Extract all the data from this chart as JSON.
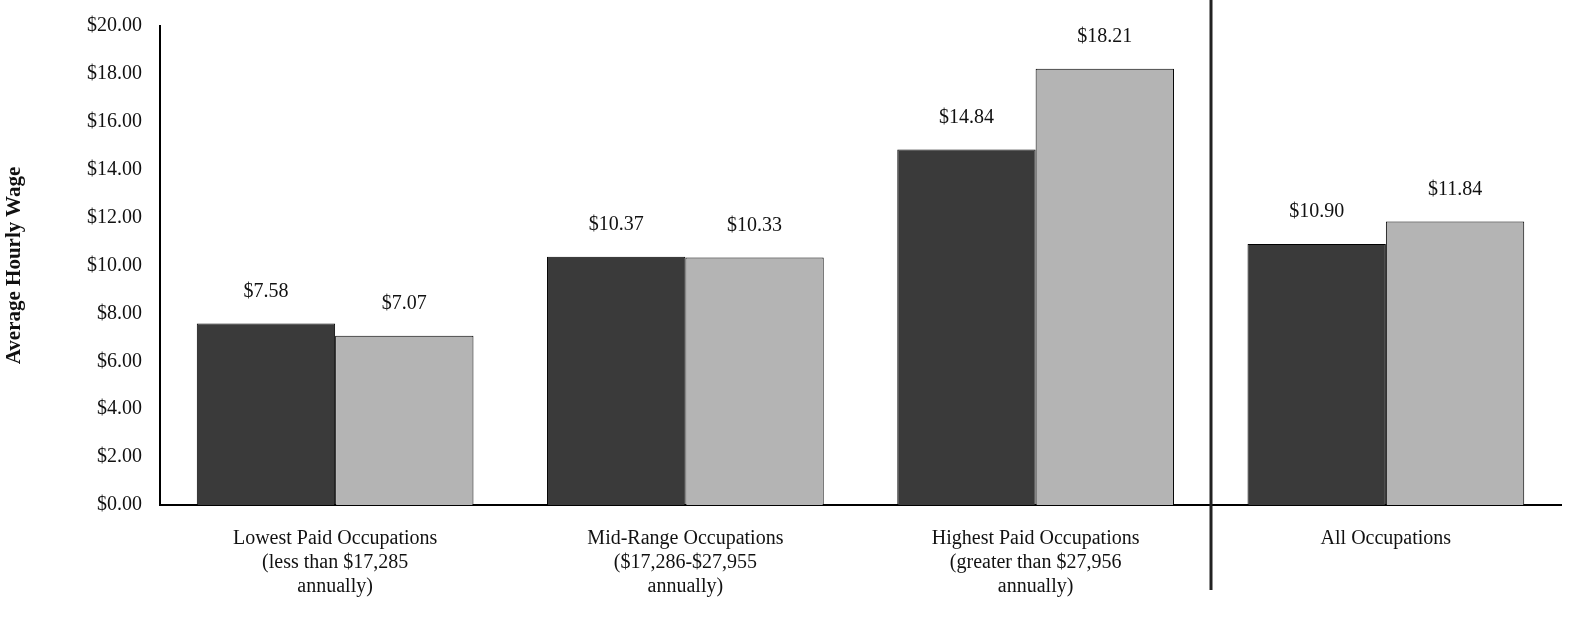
{
  "chart_data": {
    "type": "bar",
    "ylabel": "Average Hourly Wage",
    "categories": [
      "Lowest Paid Occupations (less than $17,285 annually)",
      "Mid-Range Occupations ($17,286-$27,955 annually)",
      "Highest Paid Occupations (greater than $27,956 annually)",
      "All Occupations"
    ],
    "series": [
      {
        "color": "#3a3a3a",
        "values": [
          7.58,
          10.37,
          14.84,
          10.9
        ],
        "value_labels": [
          "$7.58",
          "$10.37",
          "$14.84",
          "$10.90"
        ]
      },
      {
        "color": "#b4b4b4",
        "values": [
          7.07,
          10.33,
          18.21,
          11.84
        ],
        "value_labels": [
          "$7.07",
          "$10.33",
          "$18.21",
          "$11.84"
        ]
      }
    ],
    "ylim": [
      0,
      20
    ],
    "yticks": [
      {
        "value": 0,
        "label": "$0.00"
      },
      {
        "value": 2,
        "label": "$2.00"
      },
      {
        "value": 4,
        "label": "$4.00"
      },
      {
        "value": 6,
        "label": "$6.00"
      },
      {
        "value": 8,
        "label": "$8.00"
      },
      {
        "value": 10,
        "label": "$10.00"
      },
      {
        "value": 12,
        "label": "$12.00"
      },
      {
        "value": 14,
        "label": "$14.00"
      },
      {
        "value": 16,
        "label": "$16.00"
      },
      {
        "value": 18,
        "label": "$18.00"
      },
      {
        "value": 20,
        "label": "$20.00"
      }
    ],
    "grid": false,
    "legend": false
  }
}
